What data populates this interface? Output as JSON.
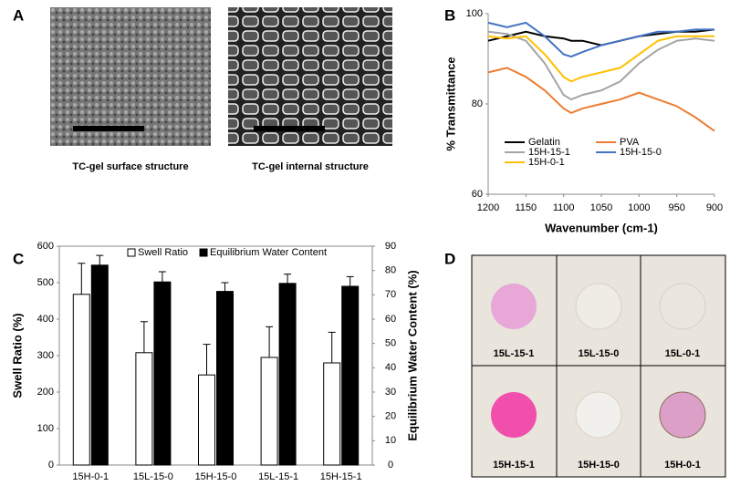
{
  "panel_labels": [
    "A",
    "B",
    "C",
    "D"
  ],
  "sem_images": {
    "captions": [
      "TC-gel surface structure",
      "TC-gel internal structure"
    ]
  },
  "photo_grid": {
    "labels": [
      "15L-15-1",
      "15L-15-0",
      "15L-0-1",
      "15H-15-1",
      "15H-15-0",
      "15H-0-1"
    ]
  },
  "chart_data": [
    {
      "type": "line",
      "x_label": "Wavenumber (cm-1)",
      "y_label": "% Transmittance",
      "x": [
        1200,
        1175,
        1150,
        1125,
        1100,
        1090,
        1075,
        1050,
        1025,
        1000,
        975,
        950,
        925,
        900
      ],
      "xlim": [
        1200,
        900
      ],
      "xticks": [
        1200,
        1150,
        1100,
        1050,
        1000,
        950,
        900
      ],
      "ylim": [
        60,
        100
      ],
      "yticks": [
        60,
        80,
        100
      ],
      "grid": false,
      "legend": "lower left",
      "series": [
        {
          "name": "Gelatin",
          "color": "#000000",
          "values": [
            94,
            95,
            96,
            95,
            94.5,
            94,
            94,
            93,
            94,
            95,
            95.5,
            96,
            96,
            96.5
          ]
        },
        {
          "name": "PVA",
          "color": "#ed7d31",
          "values": [
            87,
            88,
            86,
            83,
            79,
            78,
            79,
            80,
            81,
            82.5,
            81,
            79.5,
            77,
            74
          ]
        },
        {
          "name": "15H-15-1",
          "color": "#a5a5a5",
          "values": [
            96,
            95.5,
            94,
            89,
            82,
            81,
            82,
            83,
            85,
            89,
            92,
            94,
            94.5,
            94
          ]
        },
        {
          "name": "15H-15-0",
          "color": "#4472c4",
          "values": [
            98,
            97,
            98,
            95,
            91,
            90.5,
            91.5,
            93,
            94,
            95,
            96,
            96,
            96.5,
            96.5
          ]
        },
        {
          "name": "15H-0-1",
          "color": "#ffc000",
          "values": [
            95,
            94.5,
            95,
            91,
            86,
            85,
            86,
            87,
            88,
            91,
            94,
            95,
            95,
            95
          ]
        }
      ]
    },
    {
      "type": "bar",
      "y_label": "Swell Ratio (%)",
      "y2_label": "Equilibrium Water Content (%)",
      "categories": [
        "15H-0-1",
        "15L-15-0",
        "15H-15-0",
        "15L-15-1",
        "15H-15-1"
      ],
      "ylim": [
        0,
        600
      ],
      "yticks": [
        0,
        100,
        200,
        300,
        400,
        500,
        600
      ],
      "y2lim": [
        0,
        90
      ],
      "y2ticks": [
        0,
        10,
        20,
        30,
        40,
        50,
        60,
        70,
        80,
        90
      ],
      "grid": false,
      "legend": "top",
      "series": [
        {
          "name": "Swell Ratio",
          "color": "#ffffff",
          "values": [
            468,
            308,
            247,
            295,
            280
          ],
          "errors": [
            85,
            85,
            84,
            84,
            84
          ]
        },
        {
          "name": "Equilibrium Water Content",
          "color": "#000000",
          "axis": "y2",
          "values": [
            82.2,
            75.3,
            71.4,
            74.7,
            73.5
          ],
          "errors": [
            4,
            4.2,
            3.6,
            3.8,
            4
          ]
        }
      ]
    }
  ]
}
